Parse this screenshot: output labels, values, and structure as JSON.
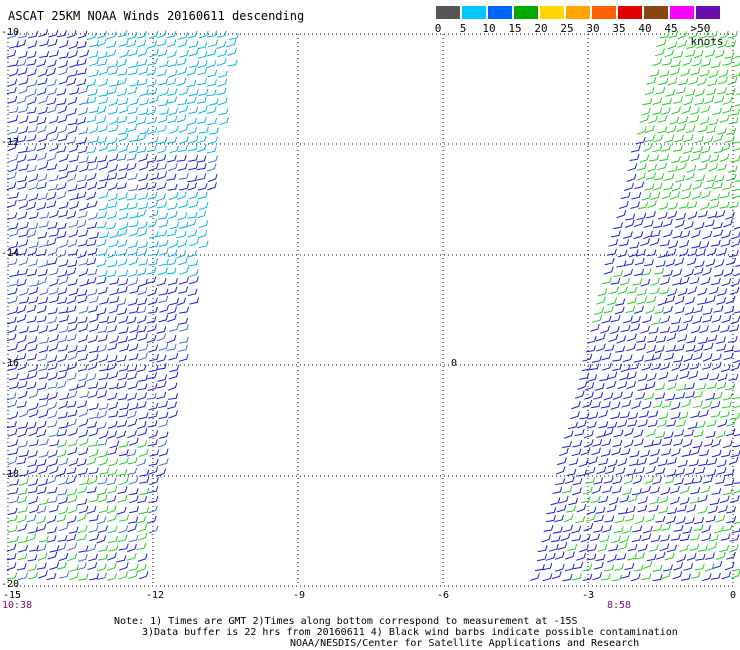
{
  "title": "ASCAT 25KM NOAA Winds 20160611 descending",
  "legend": {
    "labels": [
      "0",
      "5",
      "10",
      "15",
      "20",
      "25",
      "30",
      "35",
      "40",
      "45",
      ">50 knots"
    ],
    "colors": [
      "#555555",
      "#00c8ff",
      "#0064ff",
      "#00aa00",
      "#ffd700",
      "#ffa500",
      "#ff6000",
      "#e00000",
      "#8b4513",
      "#ff00ff",
      "#6a0dad"
    ]
  },
  "map": {
    "lat_labels": [
      "-10",
      "-12",
      "-14",
      "-16",
      "-18",
      "-20"
    ],
    "lon_labels": [
      "-15",
      "-12",
      "-9",
      "-6",
      "-3",
      "0"
    ],
    "left_swath_time": "10:38",
    "right_swath_time": "8:58",
    "island_symbol": "0",
    "barb_colors": {
      "blue": "#1a1adc",
      "cyan": "#00b4e6",
      "green": "#22cc22"
    }
  },
  "notes": {
    "line1": "Note: 1) Times are GMT 2)Times along bottom correspond to measurement at -15S",
    "line2": "3)Data buffer is 22 hrs from 20160611 4) Black wind barbs indicate possible contamination",
    "line3": "NOAA/NESDIS/Center for Satellite Applications and Research"
  }
}
